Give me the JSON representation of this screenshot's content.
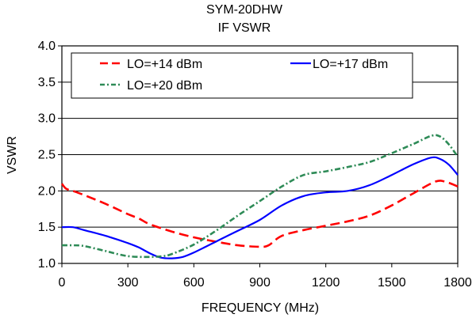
{
  "chart_data": {
    "type": "line",
    "title": "SYM-20DHW",
    "subtitle": "IF VSWR",
    "xlabel": "FREQUENCY (MHz)",
    "ylabel": "VSWR",
    "xlim": [
      0,
      1800
    ],
    "ylim": [
      1.0,
      4.0
    ],
    "xticks": [
      "0",
      "300",
      "600",
      "900",
      "1200",
      "1500",
      "1800"
    ],
    "yticks": [
      "1.0",
      "1.5",
      "2.0",
      "2.5",
      "3.0",
      "3.5",
      "4.0"
    ],
    "grid": "horizontal",
    "legend_placement": "top",
    "series": [
      {
        "name": "LO=+14 dBm",
        "color": "#ff0000",
        "style": "dashed",
        "x": [
          0,
          20,
          60,
          120,
          200,
          300,
          350,
          400,
          500,
          600,
          700,
          800,
          900,
          940,
          1000,
          1100,
          1200,
          1300,
          1400,
          1500,
          1600,
          1700,
          1750,
          1800
        ],
        "y": [
          2.1,
          2.03,
          1.99,
          1.92,
          1.82,
          1.68,
          1.62,
          1.54,
          1.44,
          1.36,
          1.3,
          1.25,
          1.23,
          1.25,
          1.38,
          1.46,
          1.52,
          1.58,
          1.66,
          1.8,
          1.97,
          2.13,
          2.12,
          2.06
        ]
      },
      {
        "name": "LO=+17 dBm",
        "color": "#0000ff",
        "style": "solid",
        "x": [
          0,
          50,
          100,
          200,
          300,
          350,
          400,
          450,
          500,
          550,
          600,
          700,
          800,
          900,
          1000,
          1100,
          1200,
          1300,
          1400,
          1500,
          1600,
          1680,
          1720,
          1760,
          1800
        ],
        "y": [
          1.5,
          1.5,
          1.46,
          1.38,
          1.28,
          1.22,
          1.14,
          1.08,
          1.07,
          1.09,
          1.15,
          1.3,
          1.45,
          1.6,
          1.8,
          1.93,
          1.98,
          2.0,
          2.08,
          2.22,
          2.37,
          2.46,
          2.44,
          2.36,
          2.22
        ]
      },
      {
        "name": "LO=+20 dBm",
        "color": "#2e8b57",
        "style": "dashdot",
        "x": [
          0,
          50,
          100,
          200,
          300,
          400,
          460,
          500,
          600,
          700,
          800,
          900,
          1000,
          1100,
          1200,
          1300,
          1400,
          1500,
          1600,
          1680,
          1720,
          1760,
          1800
        ],
        "y": [
          1.25,
          1.25,
          1.24,
          1.17,
          1.1,
          1.09,
          1.1,
          1.13,
          1.26,
          1.45,
          1.66,
          1.86,
          2.06,
          2.22,
          2.27,
          2.33,
          2.4,
          2.52,
          2.65,
          2.76,
          2.75,
          2.64,
          2.47
        ]
      }
    ]
  }
}
